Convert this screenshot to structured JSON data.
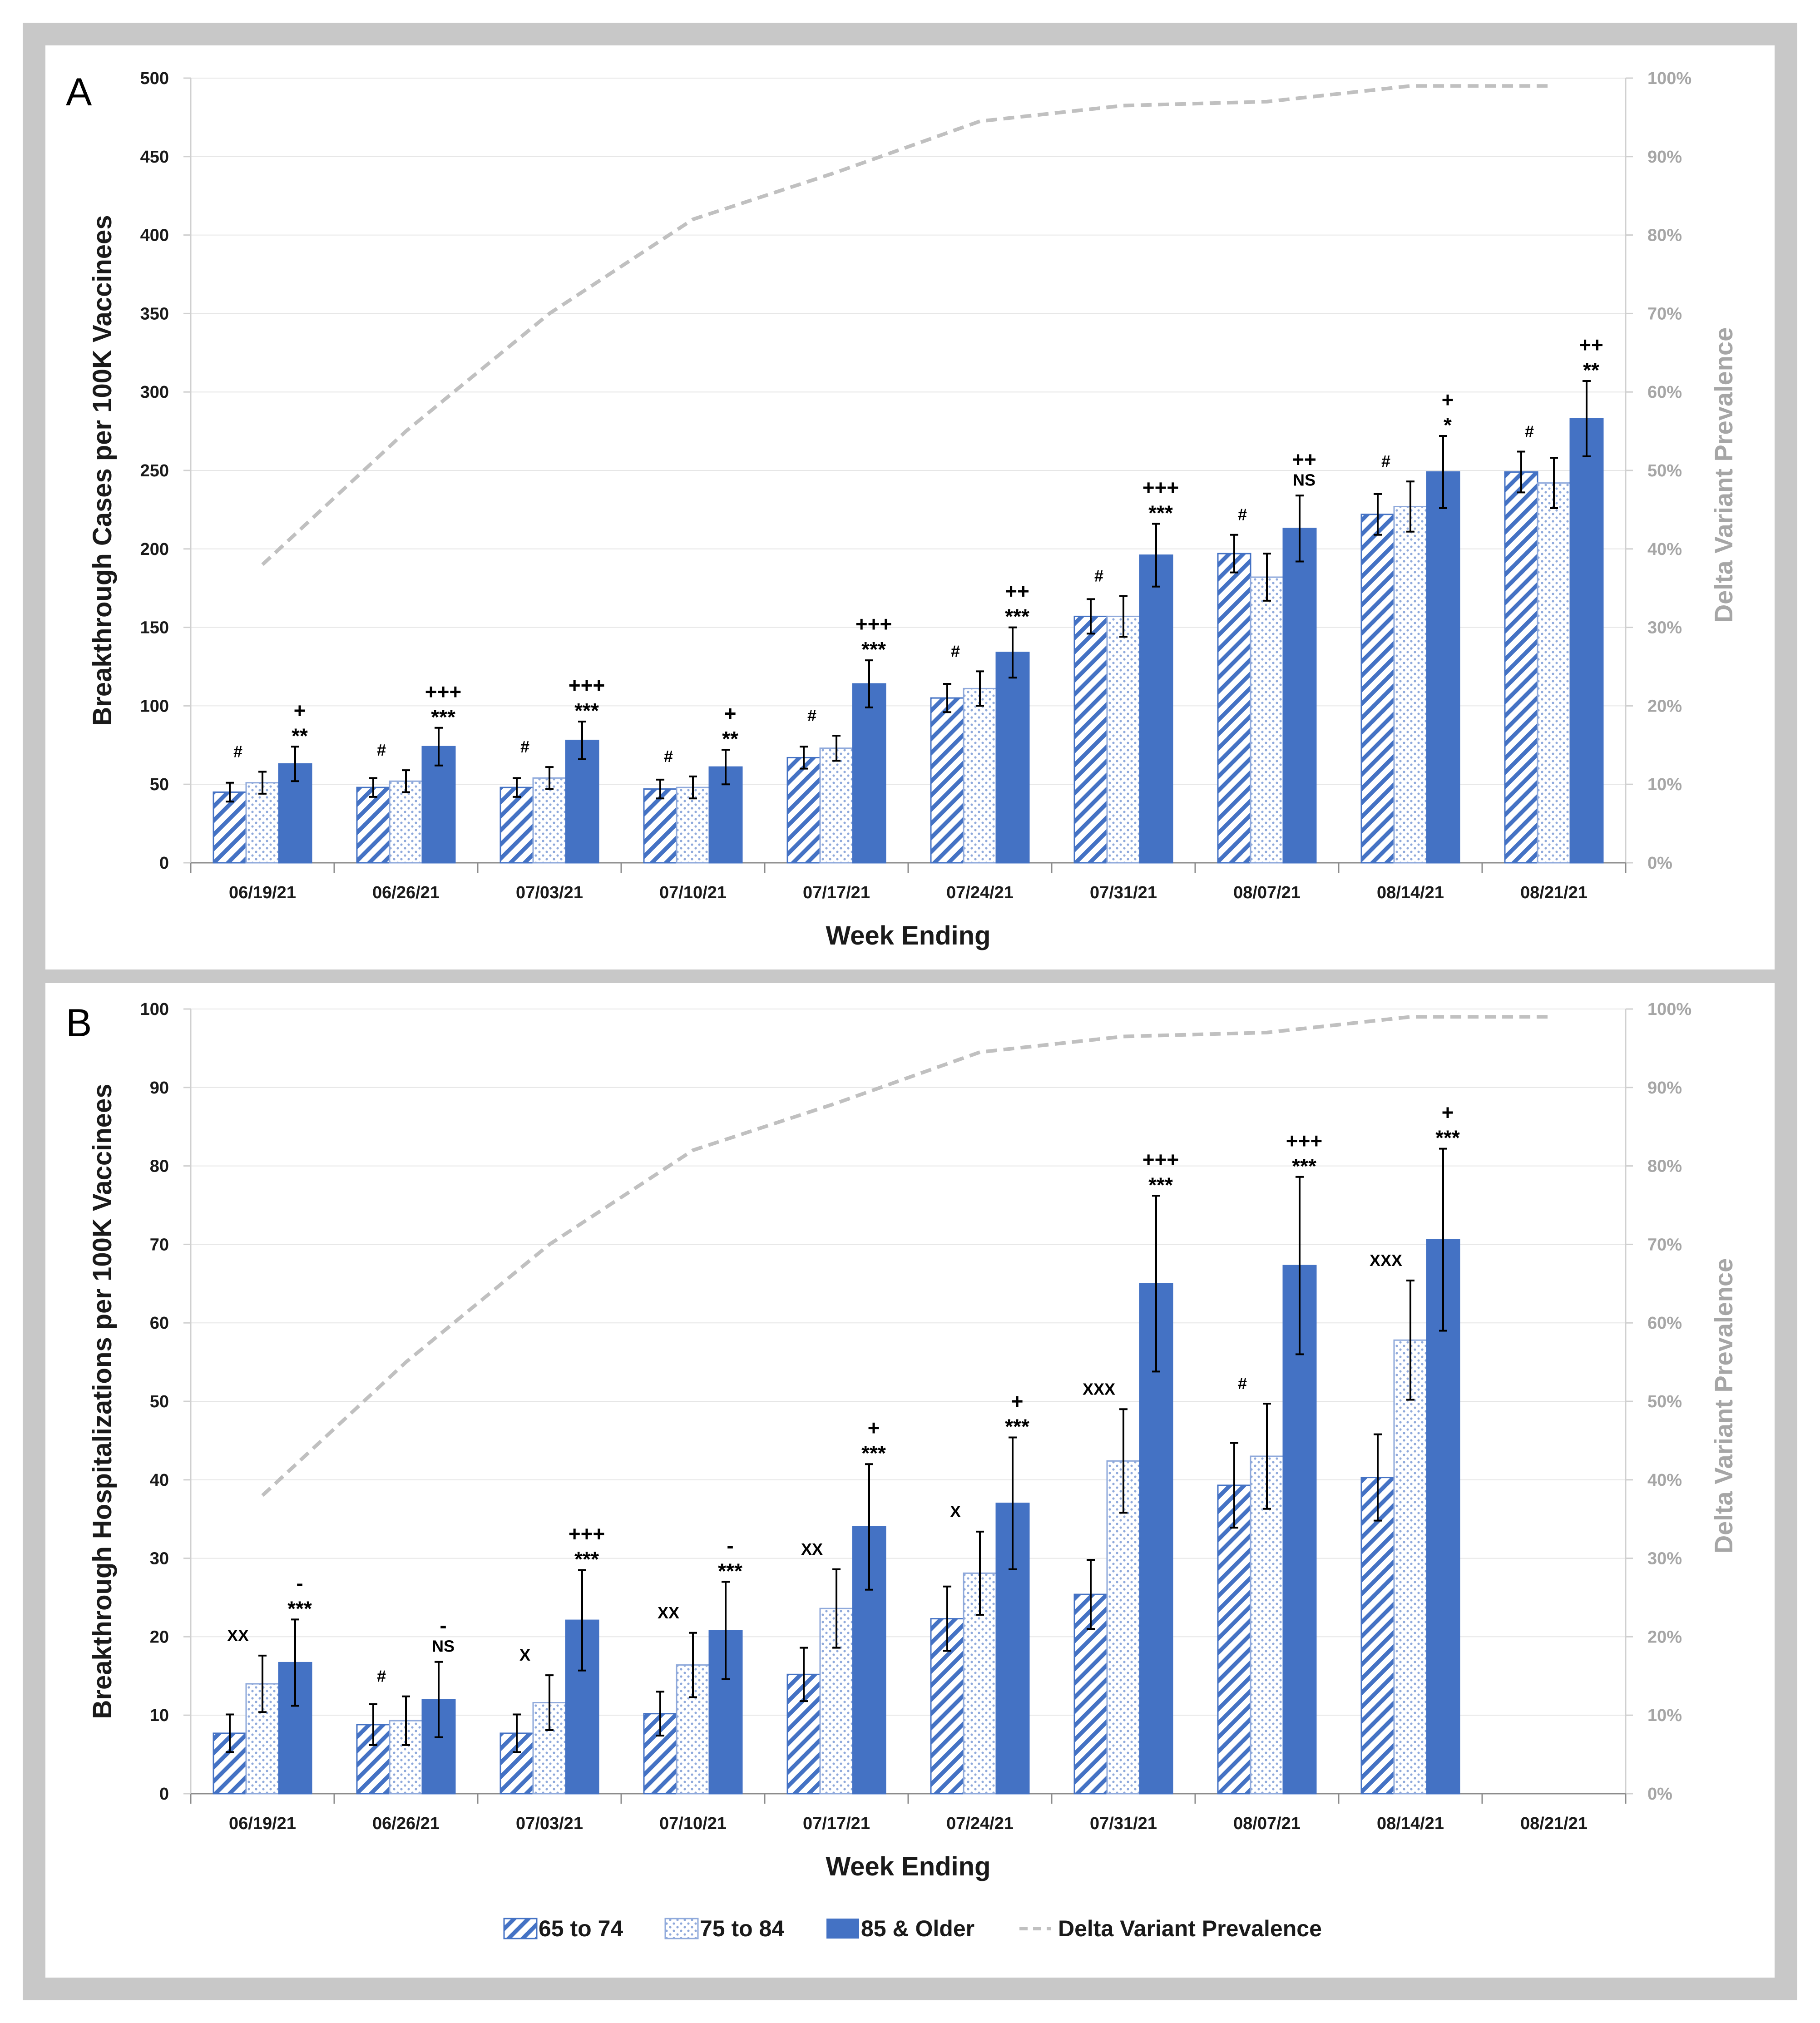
{
  "colors": {
    "frame": "#c8c8c8",
    "blue": "#4472c4",
    "stripe_light": "#ffffff",
    "delta": "#c0c0c0",
    "grid": "#e6e6e6",
    "axis": "#d0d0d0"
  },
  "legend": {
    "s1": "65 to 74",
    "s2": "75 to 84",
    "s3": "85 & Older",
    "s4": "Delta Variant Prevalence"
  },
  "chart_data": [
    {
      "panel": "A",
      "type": "bar",
      "ylabel": "Breakthrough Cases per 100K Vaccinees",
      "y2label": "Delta Variant Prevalence",
      "xlabel": "Week Ending",
      "ylim": [
        0,
        500
      ],
      "yticks": [
        "0",
        "50",
        "100",
        "150",
        "200",
        "250",
        "300",
        "350",
        "400",
        "450",
        "500"
      ],
      "y2ticks": [
        "0%",
        "10%",
        "20%",
        "30%",
        "40%",
        "50%",
        "60%",
        "70%",
        "80%",
        "90%",
        "100%"
      ],
      "categories": [
        "06/19/21",
        "06/26/21",
        "07/03/21",
        "07/10/21",
        "07/17/21",
        "07/24/21",
        "07/31/21",
        "08/07/21",
        "08/14/21",
        "08/21/21"
      ],
      "series": [
        {
          "name": "65 to 74",
          "values": [
            45,
            48,
            48,
            47,
            67,
            105,
            157,
            197,
            222,
            249
          ],
          "err": [
            6,
            6,
            6,
            6,
            7,
            9,
            11,
            12,
            13,
            13
          ]
        },
        {
          "name": "75 to 84",
          "values": [
            51,
            52,
            54,
            48,
            73,
            111,
            157,
            182,
            227,
            242
          ],
          "err": [
            7,
            7,
            7,
            7,
            8,
            11,
            13,
            15,
            16,
            16
          ]
        },
        {
          "name": "85 & Older",
          "values": [
            63,
            74,
            78,
            61,
            114,
            134,
            196,
            213,
            249,
            283
          ],
          "err": [
            11,
            12,
            12,
            11,
            15,
            16,
            20,
            21,
            23,
            24
          ]
        }
      ],
      "delta": [
        0.38,
        0.55,
        0.7,
        0.82,
        0.88,
        0.945,
        0.965,
        0.97,
        0.99,
        0.99
      ],
      "annotations": [
        {
          "group_label": "#",
          "sig": [
            "+",
            "**"
          ]
        },
        {
          "group_label": "#",
          "sig": [
            "+++",
            "***"
          ]
        },
        {
          "group_label": "#",
          "sig": [
            "+++",
            "***"
          ]
        },
        {
          "group_label": "#",
          "sig": [
            "+",
            "**"
          ]
        },
        {
          "group_label": "#",
          "sig": [
            "+++",
            "***"
          ]
        },
        {
          "group_label": "#",
          "sig": [
            "++",
            "***"
          ]
        },
        {
          "group_label": "#",
          "sig": [
            "+++",
            "***"
          ]
        },
        {
          "group_label": "#",
          "sig": [
            "++",
            "NS"
          ]
        },
        {
          "group_label": "#",
          "sig": [
            "+",
            "*"
          ]
        },
        {
          "group_label": "#",
          "sig": [
            "++",
            "**"
          ]
        }
      ]
    },
    {
      "panel": "B",
      "type": "bar",
      "ylabel": "Breakthrough Hospitalizations per 100K Vaccinees",
      "y2label": "Delta Variant Prevalence",
      "xlabel": "Week Ending",
      "ylim": [
        0,
        100
      ],
      "yticks": [
        "0",
        "10",
        "20",
        "30",
        "40",
        "50",
        "60",
        "70",
        "80",
        "90",
        "100"
      ],
      "y2ticks": [
        "0%",
        "10%",
        "20%",
        "30%",
        "40%",
        "50%",
        "60%",
        "70%",
        "80%",
        "90%",
        "100%"
      ],
      "categories": [
        "06/19/21",
        "06/26/21",
        "07/03/21",
        "07/10/21",
        "07/17/21",
        "07/24/21",
        "07/31/21",
        "08/07/21",
        "08/14/21",
        "08/21/21"
      ],
      "series": [
        {
          "name": "65 to 74",
          "values": [
            7.7,
            8.8,
            7.7,
            10.2,
            15.2,
            22.3,
            25.4,
            39.3,
            40.3,
            null
          ],
          "err": [
            2.4,
            2.6,
            2.4,
            2.8,
            3.4,
            4.1,
            4.4,
            5.4,
            5.5,
            null
          ]
        },
        {
          "name": "75 to 84",
          "values": [
            14,
            9.3,
            11.6,
            16.4,
            23.6,
            28.1,
            42.4,
            43,
            57.8,
            null
          ],
          "err": [
            3.6,
            3.1,
            3.5,
            4.1,
            5,
            5.3,
            6.6,
            6.7,
            7.6,
            null
          ]
        },
        {
          "name": "85 & Older",
          "values": [
            16.7,
            12,
            22.1,
            20.8,
            34,
            37,
            65,
            67.3,
            70.6,
            null
          ],
          "err": [
            5.5,
            4.8,
            6.4,
            6.2,
            8,
            8.4,
            11.2,
            11.3,
            11.6,
            null
          ]
        }
      ],
      "delta": [
        0.38,
        0.55,
        0.7,
        0.82,
        0.88,
        0.945,
        0.965,
        0.97,
        0.99,
        0.99
      ],
      "annotations": [
        {
          "group_label": "XX",
          "sig": [
            "-",
            "***"
          ]
        },
        {
          "group_label": "#",
          "sig": [
            "-",
            "NS"
          ]
        },
        {
          "group_label": "X",
          "sig": [
            "+++",
            "***"
          ]
        },
        {
          "group_label": "XX",
          "sig": [
            "-",
            "***"
          ]
        },
        {
          "group_label": "XX",
          "sig": [
            "+",
            "***"
          ]
        },
        {
          "group_label": "X",
          "sig": [
            "+",
            "***"
          ]
        },
        {
          "group_label": "XXX",
          "sig": [
            "+++",
            "***"
          ]
        },
        {
          "group_label": "#",
          "sig": [
            "+++",
            "***"
          ]
        },
        {
          "group_label": "XXX",
          "sig": [
            "+",
            "***"
          ]
        },
        {
          "group_label": "",
          "sig": []
        }
      ]
    }
  ]
}
